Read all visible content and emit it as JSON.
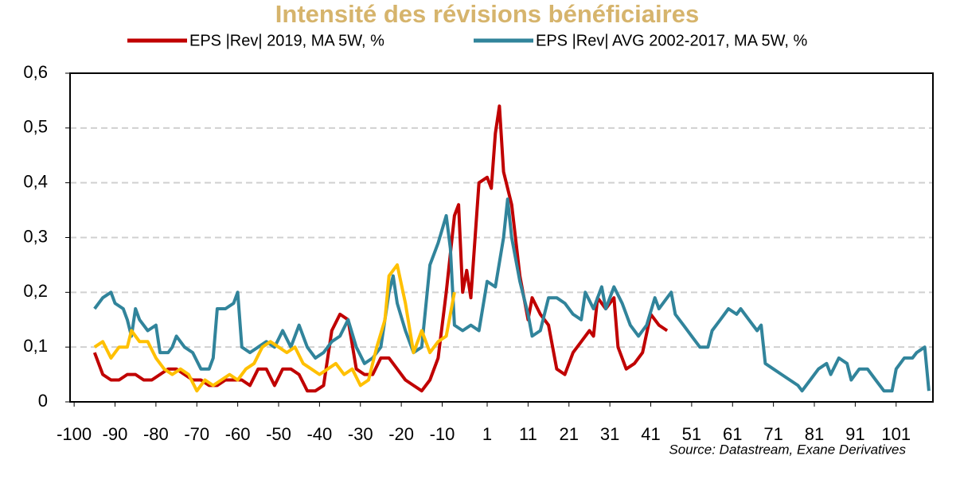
{
  "chart_data": {
    "type": "line",
    "title": "Intensité des révisions bénéficiaires",
    "source": "Source: Datastream,  Exane Derivatives",
    "xlim": [
      -101,
      110
    ],
    "xticks": [
      -100,
      -90,
      -80,
      -70,
      -60,
      -50,
      -40,
      -30,
      -20,
      -10,
      1,
      11,
      21,
      31,
      41,
      51,
      61,
      71,
      81,
      91,
      101
    ],
    "ylim": [
      0,
      0.6
    ],
    "yticks": [
      0,
      {
        "value": 0.1,
        "label": "0,1"
      },
      {
        "value": 0.2,
        "label": "0,2"
      },
      {
        "value": 0.3,
        "label": "0,3"
      },
      {
        "value": 0.4,
        "label": "0,4"
      },
      {
        "value": 0.5,
        "label": "0,5"
      },
      {
        "value": 0.6,
        "label": "0,6"
      }
    ],
    "grid": true,
    "series": [
      {
        "name": "EPS |Rev| 2019, MA 5W, %",
        "color": "#c00000",
        "x": [
          -95,
          -93,
          -91,
          -89,
          -87,
          -85,
          -83,
          -81,
          -79,
          -77,
          -75,
          -73,
          -71,
          -69,
          -67,
          -65,
          -63,
          -61,
          -59,
          -57,
          -55,
          -53,
          -51,
          -49,
          -47,
          -45,
          -43,
          -41,
          -39,
          -37,
          -35,
          -33,
          -31,
          -29,
          -27,
          -25,
          -23,
          -21,
          -19,
          -17,
          -15,
          -13,
          -11,
          -9,
          -7,
          -6,
          -5,
          -4,
          -3,
          -1,
          1,
          2,
          3,
          4,
          5,
          7,
          9,
          11,
          12,
          14,
          16,
          18,
          20,
          22,
          24,
          26,
          27,
          28,
          30,
          32,
          33,
          35,
          37,
          39,
          41,
          43,
          45
        ],
        "values": [
          0.09,
          0.05,
          0.04,
          0.04,
          0.05,
          0.05,
          0.04,
          0.04,
          0.05,
          0.06,
          0.06,
          0.05,
          0.04,
          0.04,
          0.03,
          0.03,
          0.04,
          0.04,
          0.04,
          0.03,
          0.06,
          0.06,
          0.03,
          0.06,
          0.06,
          0.05,
          0.02,
          0.02,
          0.03,
          0.13,
          0.16,
          0.15,
          0.06,
          0.05,
          0.05,
          0.08,
          0.08,
          0.06,
          0.04,
          0.03,
          0.02,
          0.04,
          0.08,
          0.2,
          0.34,
          0.36,
          0.2,
          0.24,
          0.19,
          0.4,
          0.41,
          0.39,
          0.49,
          0.54,
          0.42,
          0.36,
          0.23,
          0.15,
          0.19,
          0.16,
          0.14,
          0.06,
          0.05,
          0.09,
          0.11,
          0.13,
          0.12,
          0.19,
          0.17,
          0.19,
          0.1,
          0.06,
          0.07,
          0.09,
          0.16,
          0.14,
          0.13
        ]
      },
      {
        "name": "EPS |Rev| AVG 2002-2017, MA 5W, %",
        "color": "#31849b",
        "x": [
          -95,
          -93,
          -91,
          -90,
          -88,
          -87,
          -86,
          -85,
          -84,
          -82,
          -80,
          -79,
          -77,
          -76,
          -75,
          -73,
          -71,
          -69,
          -67,
          -66,
          -65,
          -63,
          -61,
          -60,
          -59,
          -57,
          -55,
          -53,
          -51,
          -49,
          -47,
          -45,
          -43,
          -41,
          -39,
          -37,
          -35,
          -33,
          -31,
          -29,
          -27,
          -25,
          -23,
          -22,
          -21,
          -19,
          -17,
          -15,
          -13,
          -11,
          -9,
          -8,
          -7,
          -5,
          -3,
          -1,
          1,
          3,
          5,
          6,
          7,
          9,
          11,
          12,
          14,
          16,
          18,
          20,
          22,
          24,
          25,
          27,
          29,
          30,
          32,
          34,
          36,
          38,
          40,
          42,
          43,
          46,
          47,
          49,
          51,
          53,
          55,
          56,
          58,
          60,
          62,
          63,
          65,
          67,
          68,
          69,
          71,
          73,
          75,
          77,
          78,
          80,
          82,
          84,
          85,
          87,
          89,
          90,
          92,
          94,
          96,
          98,
          100,
          101,
          103,
          105,
          106,
          108,
          109
        ],
        "values": [
          0.17,
          0.19,
          0.2,
          0.18,
          0.17,
          0.15,
          0.12,
          0.17,
          0.15,
          0.13,
          0.14,
          0.09,
          0.09,
          0.1,
          0.12,
          0.1,
          0.09,
          0.06,
          0.06,
          0.08,
          0.17,
          0.17,
          0.18,
          0.2,
          0.1,
          0.09,
          0.1,
          0.11,
          0.1,
          0.13,
          0.1,
          0.14,
          0.1,
          0.08,
          0.09,
          0.11,
          0.12,
          0.15,
          0.1,
          0.07,
          0.08,
          0.1,
          0.2,
          0.23,
          0.18,
          0.13,
          0.09,
          0.1,
          0.25,
          0.29,
          0.34,
          0.28,
          0.14,
          0.13,
          0.14,
          0.13,
          0.22,
          0.21,
          0.3,
          0.37,
          0.3,
          0.22,
          0.16,
          0.12,
          0.13,
          0.19,
          0.19,
          0.18,
          0.16,
          0.15,
          0.2,
          0.17,
          0.21,
          0.17,
          0.21,
          0.18,
          0.14,
          0.12,
          0.14,
          0.19,
          0.17,
          0.2,
          0.16,
          0.14,
          0.12,
          0.1,
          0.1,
          0.13,
          0.15,
          0.17,
          0.16,
          0.17,
          0.15,
          0.13,
          0.14,
          0.07,
          0.06,
          0.05,
          0.04,
          0.03,
          0.02,
          0.04,
          0.06,
          0.07,
          0.05,
          0.08,
          0.07,
          0.04,
          0.06,
          0.06,
          0.04,
          0.02,
          0.02,
          0.06,
          0.08,
          0.08,
          0.09,
          0.1,
          0.02
        ]
      },
      {
        "color": "#ffc000",
        "x": [
          -95,
          -93,
          -91,
          -89,
          -87,
          -86,
          -84,
          -82,
          -80,
          -78,
          -76,
          -74,
          -72,
          -70,
          -68,
          -66,
          -64,
          -62,
          -60,
          -58,
          -56,
          -54,
          -52,
          -50,
          -48,
          -46,
          -44,
          -42,
          -40,
          -38,
          -36,
          -34,
          -32,
          -30,
          -28,
          -26,
          -24,
          -23,
          -21,
          -19,
          -17,
          -15,
          -13,
          -11,
          -9,
          -7
        ],
        "values": [
          0.1,
          0.11,
          0.08,
          0.1,
          0.1,
          0.13,
          0.11,
          0.11,
          0.08,
          0.06,
          0.05,
          0.06,
          0.05,
          0.02,
          0.04,
          0.03,
          0.04,
          0.05,
          0.04,
          0.06,
          0.07,
          0.1,
          0.11,
          0.1,
          0.09,
          0.1,
          0.07,
          0.06,
          0.05,
          0.06,
          0.07,
          0.05,
          0.06,
          0.03,
          0.04,
          0.1,
          0.15,
          0.23,
          0.25,
          0.18,
          0.09,
          0.13,
          0.09,
          0.11,
          0.12,
          0.2
        ]
      }
    ]
  }
}
